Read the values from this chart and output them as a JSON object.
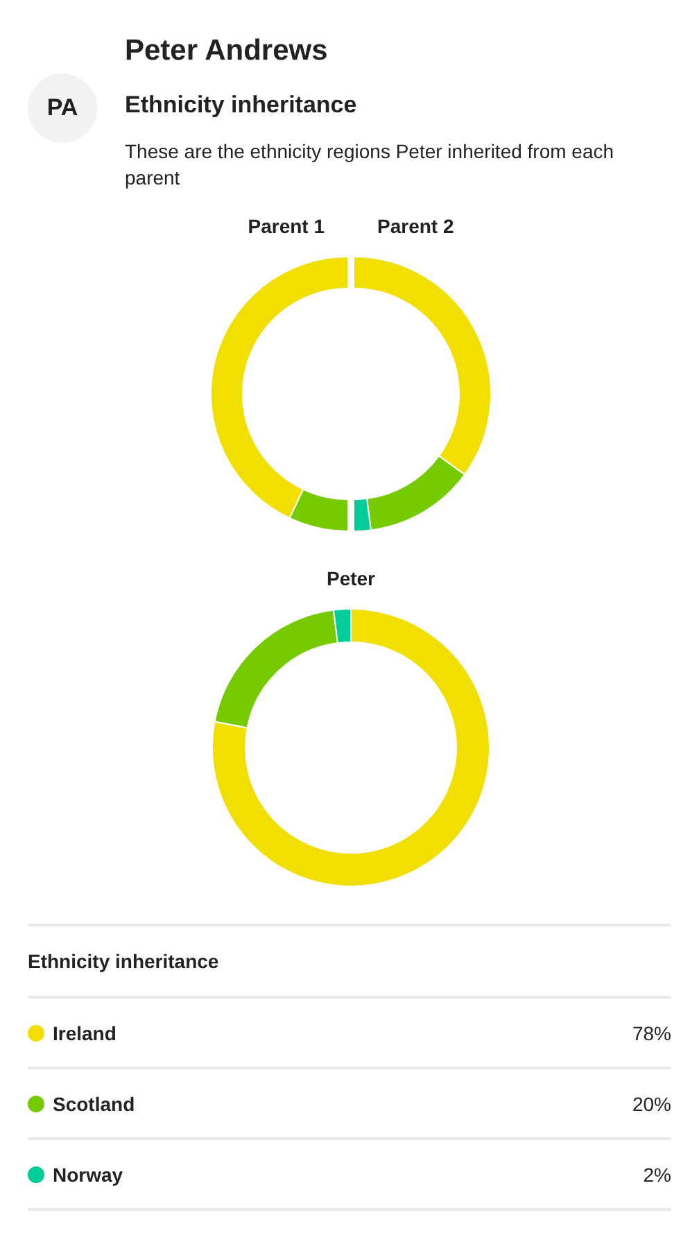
{
  "chart_data": [
    {
      "type": "other",
      "title": "Peter Andrews",
      "subtitle": "Ethnicity inheritance",
      "annotations": [
        "PA",
        "These are the ethnicity regions Peter inherited from each parent"
      ]
    },
    {
      "type": "donut",
      "title": "Parent 1",
      "categories": [
        null,
        null
      ],
      "values": [
        86,
        14
      ],
      "colors": [
        "#f0df00",
        "#76cb00"
      ]
    },
    {
      "type": "donut",
      "title": "Parent 2",
      "categories": [
        null,
        null,
        null
      ],
      "values": [
        70,
        26,
        4
      ],
      "colors": [
        "#f0df00",
        "#76cb00",
        "#00cc99"
      ]
    },
    {
      "type": "donut",
      "title": "Peter",
      "categories": [
        "Ireland",
        "Scotland",
        "Norway"
      ],
      "values": [
        78,
        20,
        2
      ],
      "colors": [
        "#f0df00",
        "#76cb00",
        "#00cc99"
      ],
      "value_labels": [
        "78%",
        "20%",
        "2%"
      ],
      "legend": "bottom",
      "legend_title": "Ethnicity inheritance"
    }
  ]
}
